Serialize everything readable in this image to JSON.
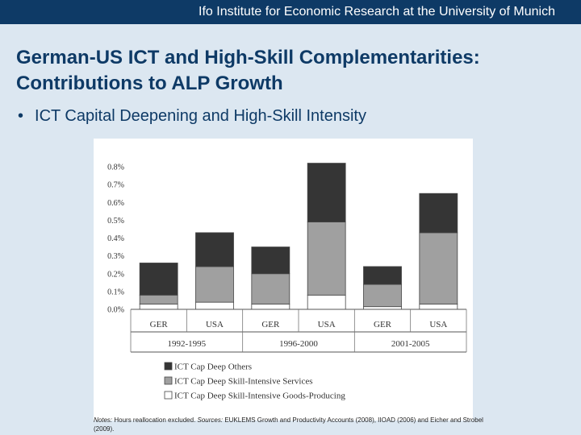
{
  "header": {
    "institute": "Ifo Institute for Economic Research at the University of Munich"
  },
  "slide": {
    "title": "German-US ICT and High-Skill Complementarities: Contributions to ALP Growth",
    "bullet": "ICT Capital Deepening and High-Skill Intensity"
  },
  "chart_data": {
    "type": "bar",
    "stacked": true,
    "categories": [
      "GER",
      "USA",
      "GER",
      "USA",
      "GER",
      "USA"
    ],
    "groups": [
      "1992-1995",
      "1996-2000",
      "2001-2005"
    ],
    "y_ticks": [
      "0.0%",
      "0.1%",
      "0.2%",
      "0.3%",
      "0.4%",
      "0.5%",
      "0.6%",
      "0.7%",
      "0.8%"
    ],
    "ylim": [
      0,
      0.8
    ],
    "series": [
      {
        "name": "ICT Cap Deep Skill-Intensive Goods-Producing",
        "color": "#ffffff",
        "values": [
          0.03,
          0.04,
          0.03,
          0.08,
          0.015,
          0.03
        ]
      },
      {
        "name": "ICT Cap Deep Skill-Intensive Services",
        "color": "#a0a0a0",
        "values": [
          0.05,
          0.2,
          0.17,
          0.41,
          0.125,
          0.4
        ]
      },
      {
        "name": "ICT Cap Deep Others",
        "color": "#353535",
        "values": [
          0.18,
          0.19,
          0.15,
          0.33,
          0.1,
          0.22
        ]
      }
    ],
    "legend": [
      "ICT Cap Deep Others",
      "ICT Cap Deep Skill-Intensive Services",
      "ICT Cap Deep Skill-Intensive Goods-Producing"
    ],
    "legend_position": "bottom"
  },
  "notes": {
    "label": "Notes:",
    "text1": " Hours reallocation excluded. ",
    "sources_label": "Sources:",
    "text2": " EUKLEMS Growth and Productivity Accounts (2008), IIOAD (2006) and Eicher and Strobel (2009)."
  }
}
